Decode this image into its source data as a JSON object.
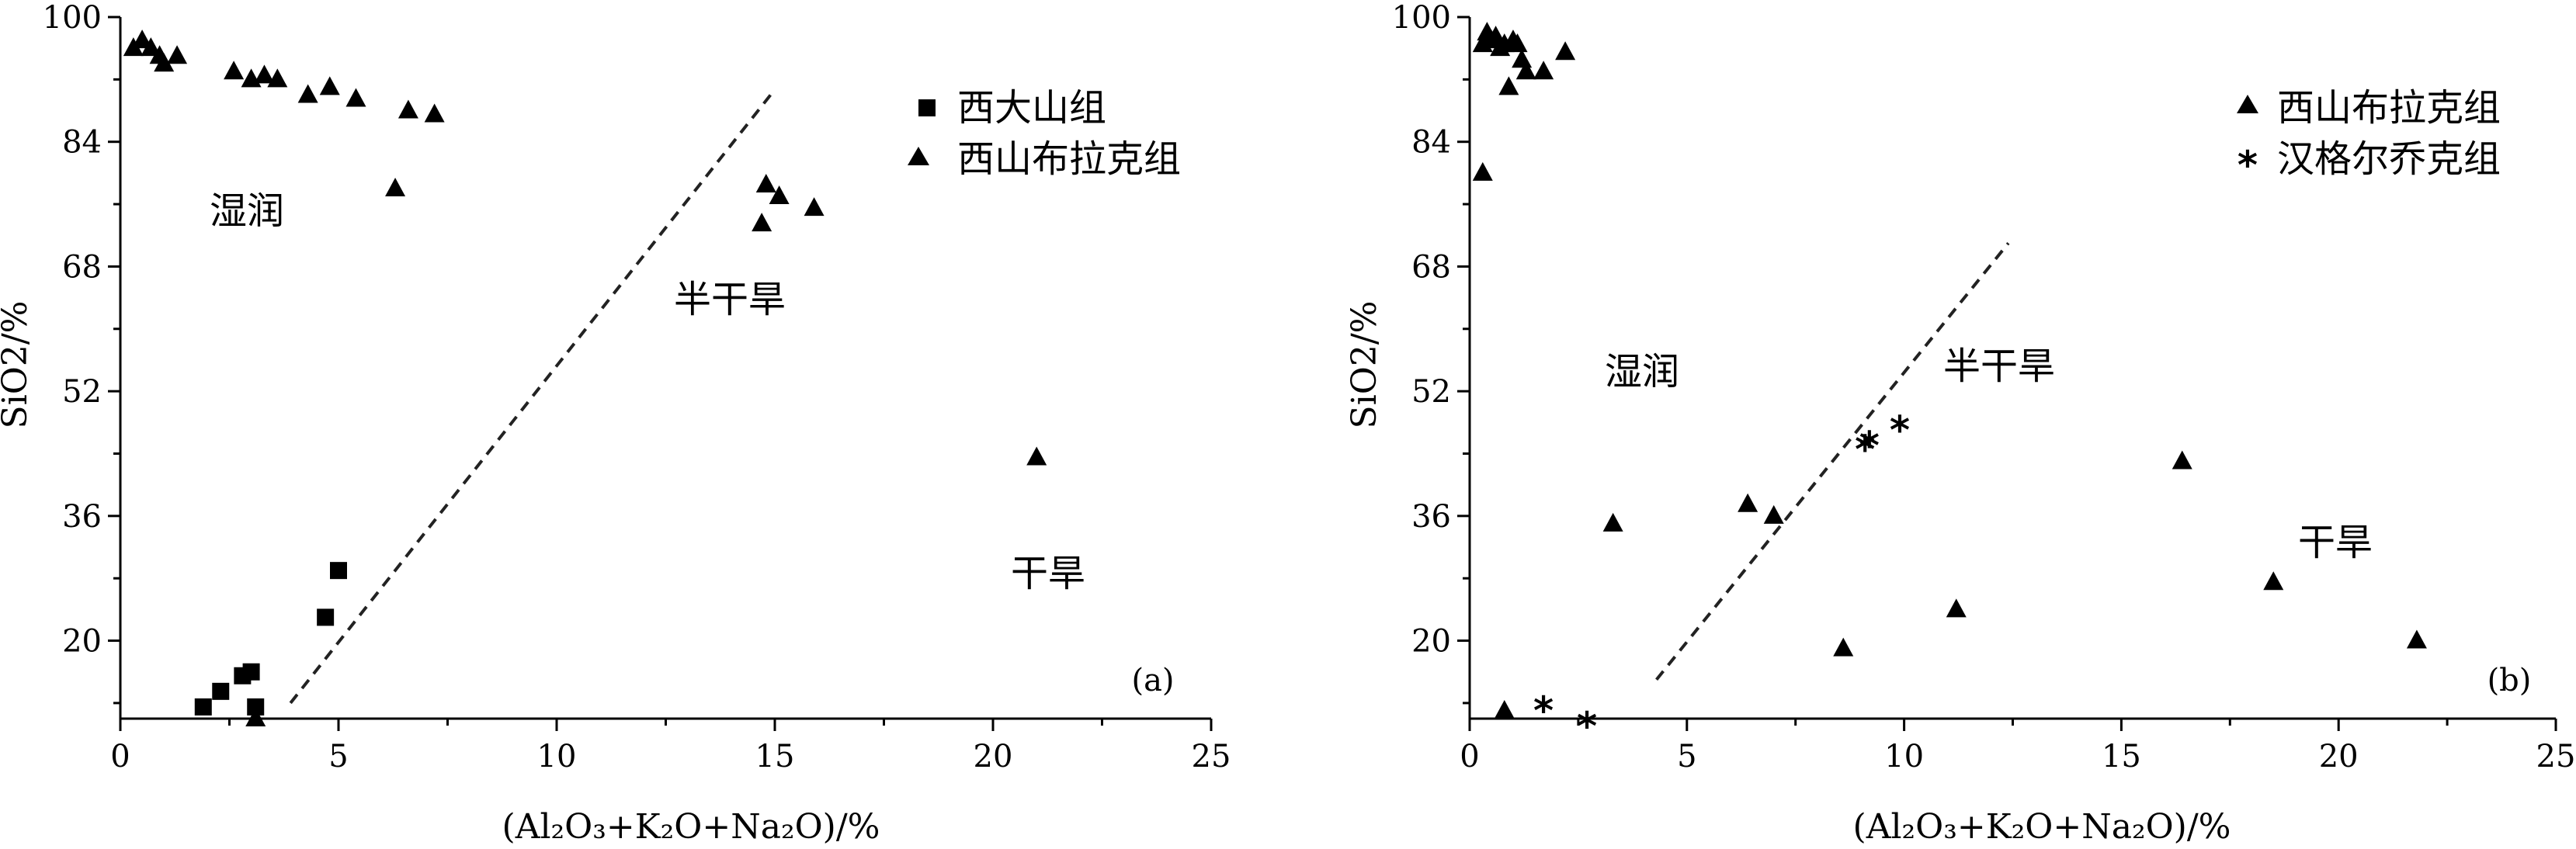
{
  "chart_data": [
    {
      "type": "scatter",
      "panel_label": "(a)",
      "xlabel": "(Al₂O₃+K₂O+Na₂O)/%",
      "ylabel": "SiO2/%",
      "xlim": [
        0,
        25
      ],
      "ylim": [
        10,
        100
      ],
      "xticks": [
        "0",
        "5",
        "10",
        "15",
        "20",
        "25"
      ],
      "yticks": [
        "100",
        "84",
        "68",
        "52",
        "36",
        "20"
      ],
      "legend_position": "top-right",
      "regions": [
        "湿润",
        "半干旱",
        "干旱"
      ],
      "boundary": {
        "style": "dashed",
        "x": [
          3.9,
          14.9
        ],
        "y": [
          12,
          90
        ]
      },
      "series": [
        {
          "name": "西大山组",
          "marker": "square",
          "points": [
            [
              1.9,
              11.5
            ],
            [
              2.3,
              13.5
            ],
            [
              2.8,
              15.5
            ],
            [
              3.0,
              16.0
            ],
            [
              3.1,
              11.5
            ],
            [
              4.7,
              23.0
            ],
            [
              5.0,
              29.0
            ]
          ]
        },
        {
          "name": "西山布拉克组",
          "marker": "triangle",
          "points": [
            [
              0.3,
              96.0
            ],
            [
              0.5,
              97.0
            ],
            [
              0.7,
              96.0
            ],
            [
              0.9,
              95.0
            ],
            [
              1.0,
              94.0
            ],
            [
              1.3,
              95.0
            ],
            [
              2.6,
              93.0
            ],
            [
              3.0,
              92.0
            ],
            [
              3.3,
              92.5
            ],
            [
              3.6,
              92.0
            ],
            [
              4.3,
              90.0
            ],
            [
              4.8,
              91.0
            ],
            [
              5.4,
              89.5
            ],
            [
              6.3,
              78.0
            ],
            [
              6.6,
              88.0
            ],
            [
              7.2,
              87.5
            ],
            [
              14.8,
              78.5
            ],
            [
              15.1,
              77.0
            ],
            [
              14.7,
              73.5
            ],
            [
              15.9,
              75.5
            ],
            [
              21.0,
              43.5
            ],
            [
              3.1,
              10.0
            ]
          ]
        }
      ]
    },
    {
      "type": "scatter",
      "panel_label": "(b)",
      "xlabel": "(Al₂O₃+K₂O+Na₂O)/%",
      "ylabel": "SiO2/%",
      "xlim": [
        0,
        25
      ],
      "ylim": [
        10,
        100
      ],
      "xticks": [
        "0",
        "5",
        "10",
        "15",
        "20",
        "25"
      ],
      "yticks": [
        "100",
        "84",
        "68",
        "52",
        "36",
        "20"
      ],
      "legend_position": "top-right",
      "regions": [
        "湿润",
        "半干旱",
        "干旱"
      ],
      "boundary": {
        "style": "dashed",
        "x": [
          4.3,
          12.4
        ],
        "y": [
          15,
          71
        ]
      },
      "series": [
        {
          "name": "西山布拉克组",
          "marker": "triangle",
          "points": [
            [
              0.3,
              96.5
            ],
            [
              0.4,
              98.0
            ],
            [
              0.5,
              97.0
            ],
            [
              0.6,
              97.5
            ],
            [
              0.7,
              96.0
            ],
            [
              0.8,
              96.5
            ],
            [
              0.9,
              91.0
            ],
            [
              1.0,
              97.0
            ],
            [
              1.1,
              96.5
            ],
            [
              1.2,
              94.5
            ],
            [
              1.3,
              93.0
            ],
            [
              1.7,
              93.0
            ],
            [
              2.2,
              95.5
            ],
            [
              0.3,
              80.0
            ],
            [
              3.3,
              35.0
            ],
            [
              6.4,
              37.5
            ],
            [
              7.0,
              36.0
            ],
            [
              8.6,
              19.0
            ],
            [
              11.2,
              24.0
            ],
            [
              16.4,
              43.0
            ],
            [
              18.5,
              27.5
            ],
            [
              21.8,
              20.0
            ],
            [
              0.8,
              11.0
            ]
          ]
        },
        {
          "name": "汉格尔乔克组",
          "marker": "star",
          "points": [
            [
              9.1,
              45.0
            ],
            [
              9.2,
              45.5
            ],
            [
              9.9,
              47.5
            ],
            [
              1.7,
              11.5
            ],
            [
              2.7,
              9.5
            ]
          ]
        }
      ]
    }
  ]
}
